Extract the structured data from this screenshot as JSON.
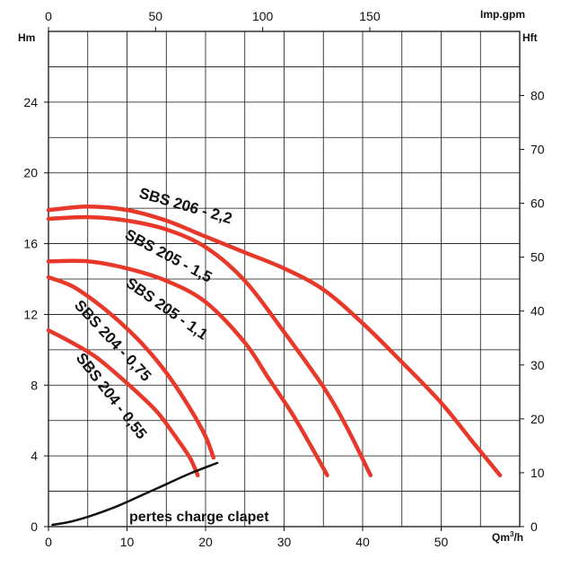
{
  "chart_data": {
    "type": "line",
    "title": "",
    "x_bottom": {
      "unit_label_main": "Qm",
      "unit_label_sup": "3",
      "unit_label_tail": "/h",
      "range": [
        0,
        60
      ],
      "ticks": [
        0,
        10,
        20,
        30,
        40,
        50
      ]
    },
    "x_top": {
      "unit_label": "Imp.gpm",
      "range": [
        0,
        220
      ],
      "ticks": [
        0,
        50,
        100,
        150
      ]
    },
    "y_left": {
      "unit_label": "Hm",
      "range": [
        0,
        28
      ],
      "ticks": [
        0,
        4,
        8,
        12,
        16,
        20,
        24
      ]
    },
    "y_right": {
      "unit_label": "Hft",
      "range": [
        0,
        91.9
      ],
      "ticks": [
        0,
        10,
        20,
        30,
        40,
        50,
        60,
        70,
        80
      ]
    },
    "grid": true,
    "curve_color": "#e8382a",
    "loss_color": "#111111",
    "series": [
      {
        "name": "SBS 206 - 2,2",
        "points": [
          [
            0,
            17.9
          ],
          [
            5,
            18.1
          ],
          [
            10,
            17.9
          ],
          [
            15,
            17.3
          ],
          [
            20,
            16.4
          ],
          [
            25,
            15.5
          ],
          [
            30,
            14.6
          ],
          [
            35,
            13.4
          ],
          [
            40,
            11.5
          ],
          [
            45,
            9.3
          ],
          [
            50,
            7.0
          ],
          [
            54,
            4.8
          ],
          [
            57.5,
            2.9
          ]
        ]
      },
      {
        "name": "SBS 205 - 1,5",
        "points": [
          [
            0,
            17.4
          ],
          [
            5,
            17.5
          ],
          [
            10,
            17.3
          ],
          [
            15,
            16.8
          ],
          [
            20,
            15.8
          ],
          [
            25,
            13.9
          ],
          [
            30,
            11.0
          ],
          [
            35,
            7.9
          ],
          [
            38,
            5.6
          ],
          [
            41,
            2.9
          ]
        ]
      },
      {
        "name": "SBS 205 - 1,1",
        "points": [
          [
            0,
            15.0
          ],
          [
            5,
            15.0
          ],
          [
            10,
            14.6
          ],
          [
            15,
            13.9
          ],
          [
            20,
            12.7
          ],
          [
            25,
            10.4
          ],
          [
            28,
            8.4
          ],
          [
            31,
            6.4
          ],
          [
            33.5,
            4.5
          ],
          [
            35.5,
            2.9
          ]
        ]
      },
      {
        "name": "SBS 204 - 0,75",
        "points": [
          [
            0,
            14.1
          ],
          [
            3,
            13.6
          ],
          [
            6,
            12.7
          ],
          [
            9,
            11.6
          ],
          [
            12,
            10.3
          ],
          [
            15,
            8.7
          ],
          [
            18,
            6.7
          ],
          [
            20,
            5.1
          ],
          [
            21,
            3.9
          ]
        ]
      },
      {
        "name": "SBS 204 - 0,55",
        "points": [
          [
            0,
            11.1
          ],
          [
            3,
            10.4
          ],
          [
            6,
            9.6
          ],
          [
            9,
            8.5
          ],
          [
            12,
            7.3
          ],
          [
            14,
            6.4
          ],
          [
            16,
            5.2
          ],
          [
            18,
            3.9
          ],
          [
            19,
            2.9
          ]
        ]
      }
    ],
    "loss_curve": {
      "name": "pertes charge clapet",
      "points": [
        [
          0.5,
          0.1
        ],
        [
          3,
          0.3
        ],
        [
          6,
          0.7
        ],
        [
          9,
          1.2
        ],
        [
          12,
          1.8
        ],
        [
          15,
          2.4
        ],
        [
          18,
          3.0
        ],
        [
          21.5,
          3.6
        ]
      ]
    }
  }
}
